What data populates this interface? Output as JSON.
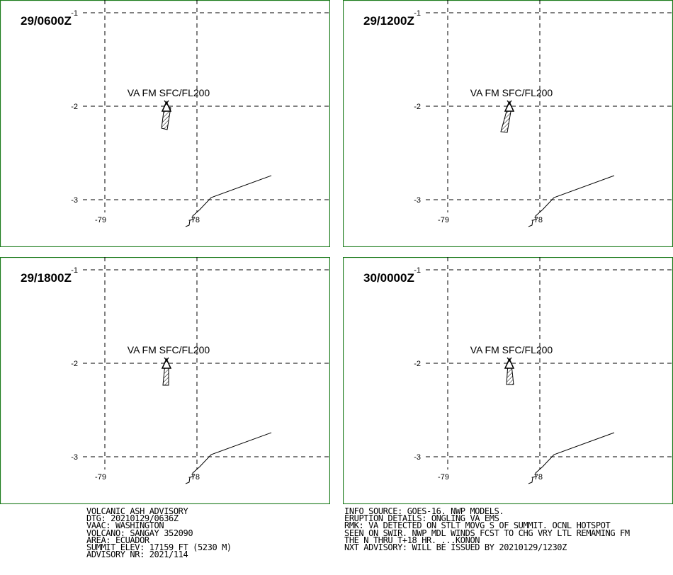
{
  "panels": [
    {
      "time": "29/0600Z",
      "label": "VA FM SFC/FL200",
      "lat_labels": [
        "-1",
        "-2",
        "-3"
      ],
      "lon_labels": [
        "-79",
        "-78"
      ],
      "plume_colour": "#000000"
    },
    {
      "time": "29/1200Z",
      "label": "VA FM SFC/FL200",
      "lat_labels": [
        "-1",
        "-2",
        "-3"
      ],
      "lon_labels": [
        "-79",
        "-78"
      ],
      "plume_colour": "#000000"
    },
    {
      "time": "29/1800Z",
      "label": "VA FM SFC/FL200",
      "lat_labels": [
        "-1",
        "-2",
        "-3"
      ],
      "lon_labels": [
        "-79",
        "-78"
      ],
      "plume_colour": "#000000"
    },
    {
      "time": "30/0000Z",
      "label": "VA FM SFC/FL200",
      "lat_labels": [
        "-1",
        "-2",
        "-3"
      ],
      "lon_labels": [
        "-79",
        "-78"
      ],
      "plume_colour": "#000000"
    }
  ],
  "frame_colour": "#1a7a1a",
  "advisory_left": [
    "VOLCANIC ASH ADVISORY",
    "DTG: 20210129/0636Z",
    "VAAC: WASHINGTON",
    "VOLCANO: SANGAY 352090",
    "AREA: ECUADOR",
    "SUMMIT ELEV: 17159 FT (5230 M)",
    "ADVISORY NR: 2021/114"
  ],
  "advisory_right": [
    "INFO SOURCE: GOES-16. NWP MODELS.",
    "ERUPTION DETAILS: ONGLING VA EMS",
    "RMK: VA DETECTED ON STLT MOVG S OF SUMMIT. OCNL HOTSPOT",
    "SEEN ON SWIR. NWP MDL WINDS FCST TO CHG VRY LTL REMAMING FM",
    "THE N THRU T+18 HR. ...KONON",
    "NXT ADVISORY: WILL BE ISSUED BY 20210129/1230Z"
  ]
}
